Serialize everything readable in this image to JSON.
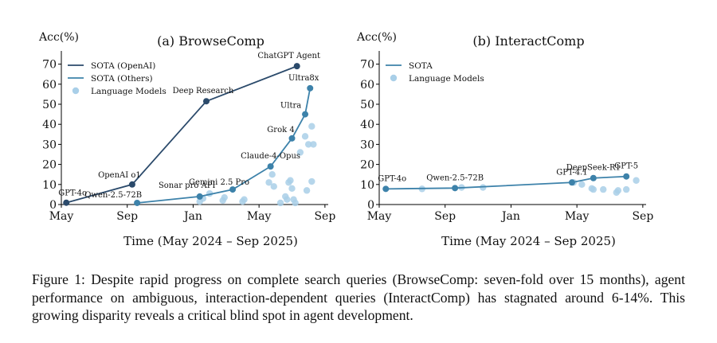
{
  "chart_data": [
    {
      "type": "line",
      "title": "(a) BrowseComp",
      "ylabel": "Acc(%)",
      "xlabel": "Time (May 2024 – Sep 2025)",
      "ylim": [
        0,
        75
      ],
      "yticks": [
        "0",
        "10",
        "20",
        "30",
        "40",
        "50",
        "60",
        "70"
      ],
      "xticks": [
        "May",
        "Sep",
        "Jan",
        "May",
        "Sep"
      ],
      "x_unit": "months since May 2024",
      "legend": {
        "position": "top-left",
        "entries": [
          "SOTA (OpenAI)",
          "SOTA (Others)",
          "Language Models"
        ]
      },
      "colors": {
        "sota_openai": "#2b4a6b",
        "sota_others": "#3d82aa",
        "models": "#a9cfe8"
      },
      "series": [
        {
          "name": "SOTA (OpenAI)",
          "points": [
            {
              "x": 0.3,
              "y": 0.9,
              "label": "GPT-4o"
            },
            {
              "x": 4.3,
              "y": 10,
              "label": "OpenAI o1"
            },
            {
              "x": 8.8,
              "y": 51.5,
              "label": "Deep Research"
            },
            {
              "x": 14.3,
              "y": 69,
              "label": "ChatGPT Agent"
            }
          ]
        },
        {
          "name": "SOTA (Others)",
          "points": [
            {
              "x": 4.6,
              "y": 0.8,
              "label": "Qwen-2.5-72B"
            },
            {
              "x": 8.4,
              "y": 4,
              "label": "Sonar pro API"
            },
            {
              "x": 10.4,
              "y": 7.5,
              "label": "Gemini 2.5 Pro"
            },
            {
              "x": 12.7,
              "y": 19,
              "label": "Claude-4-Opus"
            },
            {
              "x": 14.0,
              "y": 33,
              "label": "Grok 4"
            },
            {
              "x": 14.8,
              "y": 45,
              "label": "Ultra"
            },
            {
              "x": 15.1,
              "y": 58,
              "label": "Ultra8x"
            }
          ]
        },
        {
          "name": "Language Models",
          "points": [
            [
              8.4,
              1.5
            ],
            [
              8.6,
              3
            ],
            [
              9.0,
              5.5
            ],
            [
              9.8,
              2
            ],
            [
              9.9,
              3.5
            ],
            [
              11.0,
              1.5
            ],
            [
              11.1,
              2.5
            ],
            [
              12.6,
              11
            ],
            [
              12.8,
              15
            ],
            [
              12.9,
              9
            ],
            [
              13.3,
              0.8
            ],
            [
              13.6,
              4
            ],
            [
              13.7,
              2.5
            ],
            [
              13.8,
              11
            ],
            [
              13.9,
              12
            ],
            [
              14.0,
              8
            ],
            [
              14.1,
              2.5
            ],
            [
              14.2,
              0.8
            ],
            [
              14.5,
              26
            ],
            [
              14.8,
              34
            ],
            [
              14.9,
              7
            ],
            [
              15.0,
              30
            ],
            [
              15.2,
              39
            ],
            [
              15.3,
              30
            ],
            [
              15.2,
              11.5
            ]
          ]
        }
      ]
    },
    {
      "type": "line",
      "title": "(b) InteractComp",
      "ylabel": "Acc(%)",
      "xlabel": "Time (May 2024 – Sep 2025)",
      "ylim": [
        0,
        75
      ],
      "yticks": [
        "0",
        "10",
        "20",
        "30",
        "40",
        "50",
        "60",
        "70"
      ],
      "xticks": [
        "May",
        "Sep",
        "Jan",
        "May",
        "Sep"
      ],
      "x_unit": "months since May 2024",
      "legend": {
        "position": "top-left",
        "entries": [
          "SOTA",
          "Language Models"
        ]
      },
      "colors": {
        "sota": "#3d82aa",
        "models": "#a9cfe8"
      },
      "series": [
        {
          "name": "SOTA",
          "points": [
            {
              "x": 0.4,
              "y": 7.8,
              "label": "GPT-4o"
            },
            {
              "x": 4.6,
              "y": 8.2,
              "label": "Qwen-2.5-72B"
            },
            {
              "x": 11.7,
              "y": 11,
              "label": "GPT-4.1"
            },
            {
              "x": 13.0,
              "y": 13.2,
              "label": "DeepSeek-R1"
            },
            {
              "x": 15.0,
              "y": 14,
              "label": "GPT-5"
            }
          ]
        },
        {
          "name": "Language Models",
          "points": [
            [
              2.6,
              7.8
            ],
            [
              5.0,
              8.5
            ],
            [
              6.3,
              8.5
            ],
            [
              11.8,
              11
            ],
            [
              12.3,
              10
            ],
            [
              12.9,
              8
            ],
            [
              13.0,
              7.5
            ],
            [
              13.6,
              7.5
            ],
            [
              14.4,
              6
            ],
            [
              14.5,
              7
            ],
            [
              15.0,
              7.5
            ],
            [
              15.6,
              12
            ]
          ]
        }
      ]
    }
  ],
  "caption": "Figure 1: Despite rapid progress on complete search queries (BrowseComp: seven-fold over 15 months), agent performance on ambiguous, interaction-dependent queries (InteractComp) has stagnated around 6-14%. This growing disparity reveals a critical blind spot in agent development."
}
